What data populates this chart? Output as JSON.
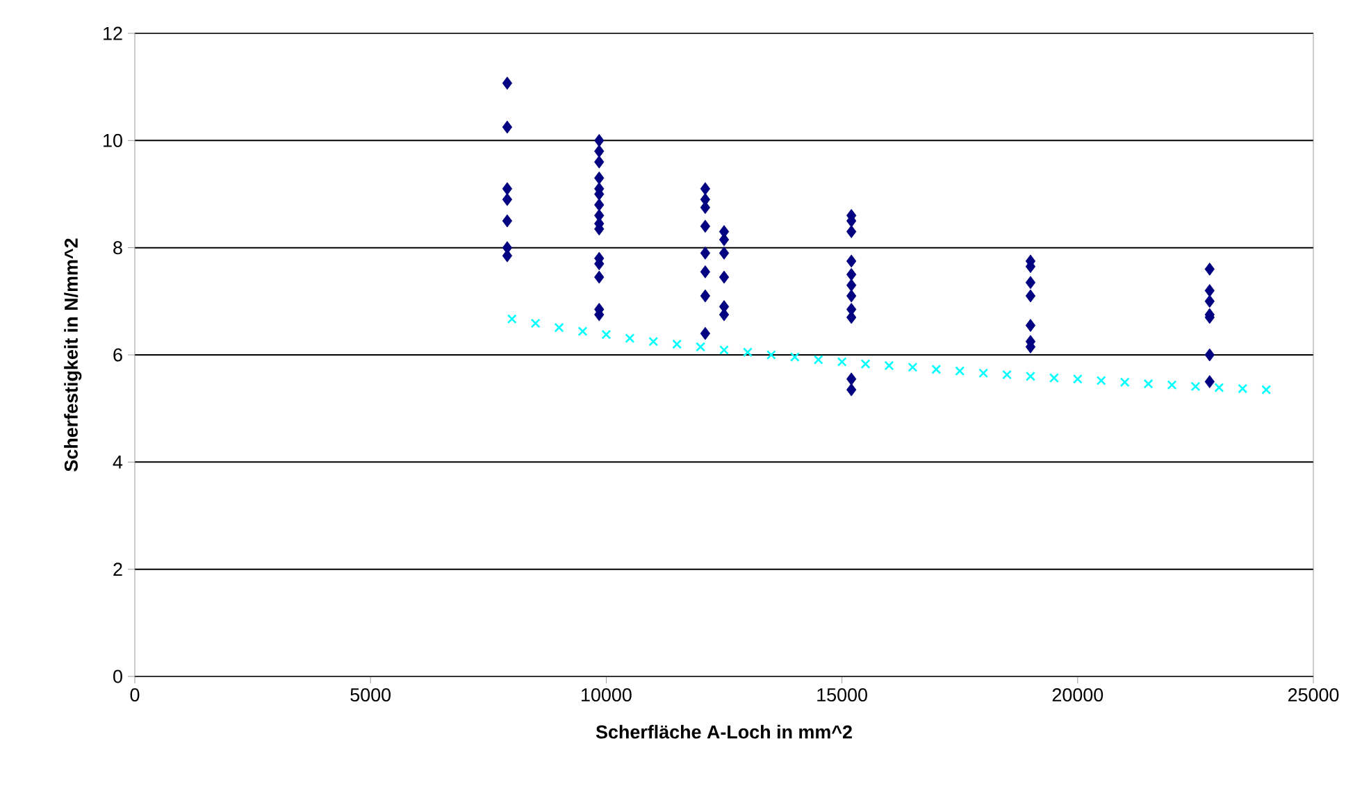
{
  "chart_data": {
    "type": "scatter",
    "xlabel": "Scherfläche A-Loch  in  mm^2",
    "ylabel": "Scherfestigkeit in N/mm^2",
    "xlim": [
      0,
      25000
    ],
    "ylim": [
      0,
      12
    ],
    "xticks": [
      0,
      5000,
      10000,
      15000,
      20000,
      25000
    ],
    "yticks": [
      0,
      2,
      4,
      6,
      8,
      10,
      12
    ],
    "grid": "y",
    "series": [
      {
        "color": "#000080",
        "marker": "diamond",
        "x": [
          7900,
          7900,
          7900,
          7900,
          7900,
          7900,
          7900,
          9850,
          9850,
          9850,
          9850,
          9850,
          9850,
          9850,
          9850,
          9850,
          9850,
          9850,
          9850,
          9850,
          9850,
          9850,
          12100,
          12100,
          12100,
          12100,
          12100,
          12100,
          12100,
          12100,
          12500,
          12500,
          12500,
          12500,
          12500,
          12500,
          15200,
          15200,
          15200,
          15200,
          15200,
          15200,
          15200,
          15200,
          15200,
          15200,
          15200,
          19000,
          19000,
          19000,
          19000,
          19000,
          19000,
          19000,
          22800,
          22800,
          22800,
          22800,
          22800,
          22800,
          22800
        ],
        "values": [
          11.07,
          10.25,
          9.1,
          8.9,
          8.5,
          8.0,
          7.85,
          10.0,
          9.8,
          9.6,
          9.3,
          9.1,
          9.0,
          8.8,
          8.6,
          8.45,
          8.35,
          7.8,
          7.7,
          7.45,
          6.85,
          6.75,
          9.1,
          8.9,
          8.75,
          8.4,
          7.9,
          7.55,
          7.1,
          6.4,
          8.3,
          8.15,
          7.9,
          7.45,
          6.9,
          6.75,
          8.6,
          8.5,
          8.3,
          7.75,
          7.5,
          7.3,
          7.1,
          6.85,
          6.7,
          5.55,
          5.35,
          7.75,
          7.65,
          7.35,
          7.1,
          6.55,
          6.25,
          6.15,
          7.6,
          7.2,
          7.0,
          6.75,
          6.7,
          6.0,
          5.5
        ]
      },
      {
        "color": "#00ffff",
        "marker": "cross",
        "x": [
          8000,
          8500,
          9000,
          9500,
          10000,
          10500,
          11000,
          11500,
          12000,
          12500,
          13000,
          13500,
          14000,
          14500,
          15000,
          15500,
          16000,
          16500,
          17000,
          17500,
          18000,
          18500,
          19000,
          19500,
          20000,
          20500,
          21000,
          21500,
          22000,
          22500,
          23000,
          23500,
          24000
        ],
        "values": [
          6.67,
          6.59,
          6.51,
          6.44,
          6.38,
          6.31,
          6.25,
          6.2,
          6.15,
          6.09,
          6.05,
          6.0,
          5.96,
          5.91,
          5.87,
          5.83,
          5.8,
          5.77,
          5.73,
          5.7,
          5.66,
          5.63,
          5.6,
          5.57,
          5.55,
          5.52,
          5.49,
          5.46,
          5.44,
          5.41,
          5.39,
          5.37,
          5.35
        ]
      }
    ]
  }
}
